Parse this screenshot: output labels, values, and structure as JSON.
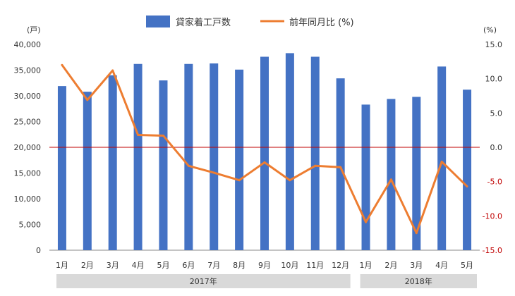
{
  "chart_data": {
    "type": "bar",
    "categories": [
      "1月",
      "2月",
      "3月",
      "4月",
      "5月",
      "6月",
      "7月",
      "8月",
      "9月",
      "10月",
      "11月",
      "12月",
      "1月",
      "2月",
      "3月",
      "4月",
      "5月"
    ],
    "groups": [
      {
        "label": "2017年",
        "count": 12
      },
      {
        "label": "2018年",
        "count": 5
      }
    ],
    "series": [
      {
        "name": "貸家着工戸数",
        "kind": "bar",
        "axis": "left",
        "color": "#4472c4",
        "values": [
          31900,
          30800,
          34000,
          36200,
          33000,
          36200,
          36300,
          35100,
          37600,
          38300,
          37600,
          33400,
          28300,
          29400,
          29800,
          35700,
          31200
        ]
      },
      {
        "name": "前年同月比 (%)",
        "kind": "line",
        "axis": "right",
        "color": "#ed7d31",
        "values": [
          12.0,
          6.9,
          11.2,
          1.8,
          1.7,
          -2.7,
          -3.7,
          -4.8,
          -2.2,
          -4.8,
          -2.7,
          -2.9,
          -10.9,
          -4.7,
          -12.5,
          -2.1,
          -5.7
        ]
      }
    ],
    "y_left": {
      "unit": "(戸)",
      "ylim": [
        0,
        40000
      ],
      "ticks": [
        "0",
        "5,000",
        "10,000",
        "15,000",
        "20,000",
        "25,000",
        "30,000",
        "35,000",
        "40,000"
      ]
    },
    "y_right": {
      "unit": "(%)",
      "ylim": [
        -15,
        15
      ],
      "ticks": [
        "-15.0",
        "-10.0",
        "-5.0",
        "0.0",
        "5.0",
        "10.0",
        "15.0"
      ]
    },
    "reference_line": {
      "axis": "right",
      "value": 0,
      "color": "#c00000"
    },
    "legend_position": "top",
    "grid": false
  }
}
